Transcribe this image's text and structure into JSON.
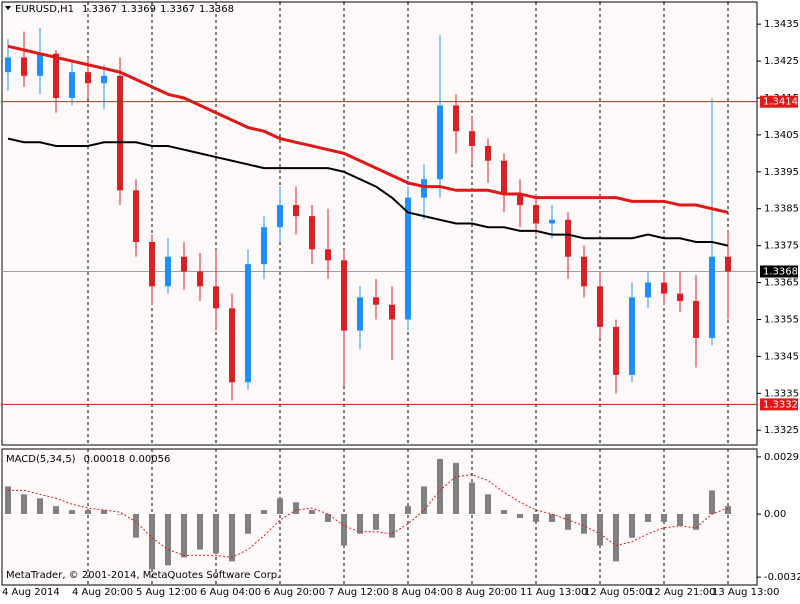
{
  "chart_data": [
    {
      "type": "candlestick",
      "title": "EURUSD,H1",
      "title_values": [
        1.3367,
        1.3369,
        1.3367,
        1.3368
      ],
      "categories": [
        "4 Aug 2014",
        null,
        null,
        null,
        null,
        "4 Aug 20:00",
        null,
        null,
        null,
        "5 Aug 12:00",
        null,
        null,
        null,
        "6 Aug 04:00",
        null,
        null,
        null,
        "6 Aug 20:00",
        null,
        null,
        null,
        "7 Aug 12:00",
        null,
        null,
        null,
        "8 Aug 04:00",
        null,
        null,
        null,
        "8 Aug 20:00",
        null,
        null,
        null,
        "11 Aug 13:00",
        null,
        null,
        null,
        "12 Aug 05:00",
        null,
        null,
        null,
        "12 Aug 21:00",
        null,
        null,
        null,
        "13 Aug 13:00"
      ],
      "open": [
        1.3422,
        1.3426,
        1.3421,
        1.3427,
        1.3415,
        1.3422,
        1.3419,
        1.3421,
        1.339,
        1.3376,
        1.3364,
        1.3372,
        1.3368,
        1.3364,
        1.3358,
        1.3338,
        1.337,
        1.338,
        1.3386,
        1.3383,
        1.3374,
        1.3371,
        1.3352,
        1.3361,
        1.3359,
        1.3355,
        1.3388,
        1.3393,
        1.3413,
        1.3406,
        1.3402,
        1.3398,
        1.3389,
        1.3386,
        1.3381,
        1.3382,
        1.3372,
        1.3364,
        1.3353,
        1.334,
        1.3361,
        1.3365,
        1.3362,
        1.336,
        1.335,
        1.3372
      ],
      "high": [
        1.3431,
        1.3433,
        1.3434,
        1.3428,
        1.3425,
        1.3426,
        1.3424,
        1.3426,
        1.3393,
        1.3378,
        1.3377,
        1.3376,
        1.3373,
        1.3374,
        1.3362,
        1.3374,
        1.3383,
        1.3391,
        1.3391,
        1.3386,
        1.3385,
        1.3374,
        1.3364,
        1.3366,
        1.3364,
        1.3391,
        1.3397,
        1.3432,
        1.3416,
        1.341,
        1.3404,
        1.34,
        1.3393,
        1.3389,
        1.3386,
        1.3384,
        1.3375,
        1.3368,
        1.3355,
        1.3365,
        1.3368,
        1.3368,
        1.3368,
        1.3367,
        1.3415,
        1.3379
      ],
      "low": [
        1.3417,
        1.3418,
        1.3416,
        1.3411,
        1.3413,
        1.3415,
        1.3412,
        1.3386,
        1.3372,
        1.3359,
        1.3362,
        1.3363,
        1.336,
        1.3352,
        1.3333,
        1.3336,
        1.3366,
        1.3376,
        1.3378,
        1.337,
        1.3366,
        1.3337,
        1.3347,
        1.3355,
        1.3344,
        1.3352,
        1.3382,
        1.3388,
        1.34,
        1.3397,
        1.3392,
        1.3384,
        1.338,
        1.3378,
        1.3377,
        1.3366,
        1.3361,
        1.335,
        1.3335,
        1.3338,
        1.3358,
        1.3359,
        1.3357,
        1.3342,
        1.3348,
        1.3355
      ],
      "close": [
        1.3426,
        1.3421,
        1.3427,
        1.3415,
        1.3422,
        1.3419,
        1.3421,
        1.339,
        1.3376,
        1.3364,
        1.3372,
        1.3368,
        1.3364,
        1.3358,
        1.3338,
        1.337,
        1.338,
        1.3386,
        1.3383,
        1.3374,
        1.3371,
        1.3352,
        1.3361,
        1.3359,
        1.3355,
        1.3388,
        1.3393,
        1.3413,
        1.3406,
        1.3402,
        1.3398,
        1.3389,
        1.3386,
        1.3381,
        1.3382,
        1.3372,
        1.3364,
        1.3353,
        1.334,
        1.3361,
        1.3365,
        1.3362,
        1.336,
        1.335,
        1.3372,
        1.3368
      ],
      "up_color": "#1e90ff",
      "down_color": "#dc1e28",
      "overlays": [
        {
          "color": "#e01818",
          "values": [
            1.3429,
            1.3428,
            1.3427,
            1.3426,
            1.3425,
            1.3424,
            1.3423,
            1.3422,
            1.342,
            1.3418,
            1.3416,
            1.3415,
            1.3413,
            1.3411,
            1.3409,
            1.3407,
            1.3406,
            1.3404,
            1.3403,
            1.3402,
            1.3401,
            1.34,
            1.3398,
            1.3396,
            1.3394,
            1.3392,
            1.3391,
            1.3391,
            1.339,
            1.339,
            1.339,
            1.3389,
            1.3389,
            1.3388,
            1.3388,
            1.3388,
            1.3388,
            1.3388,
            1.3388,
            1.3387,
            1.3387,
            1.3387,
            1.3386,
            1.3386,
            1.3385,
            1.3384
          ]
        },
        {
          "color": "#000000",
          "values": [
            1.3404,
            1.3403,
            1.3403,
            1.3402,
            1.3402,
            1.3402,
            1.3403,
            1.3403,
            1.3403,
            1.3402,
            1.3402,
            1.3401,
            1.34,
            1.3399,
            1.3398,
            1.3397,
            1.3396,
            1.3396,
            1.3396,
            1.3396,
            1.3396,
            1.3395,
            1.3393,
            1.3391,
            1.3388,
            1.3384,
            1.3383,
            1.3382,
            1.3381,
            1.3381,
            1.338,
            1.338,
            1.3379,
            1.3379,
            1.3378,
            1.3378,
            1.3377,
            1.3377,
            1.3377,
            1.3377,
            1.3378,
            1.3377,
            1.3377,
            1.3376,
            1.3376,
            1.3375
          ]
        }
      ],
      "levels": [
        {
          "value": 1.3414,
          "color": "#e01818"
        },
        {
          "value": 1.3332,
          "color": "#e01818"
        }
      ],
      "current_price": 1.3368,
      "ylim": [
        1.3321,
        1.3441
      ],
      "yticks": [
        1.3435,
        1.3425,
        1.3415,
        1.3405,
        1.3395,
        1.3385,
        1.3375,
        1.3365,
        1.3355,
        1.3345,
        1.3335,
        1.3325
      ]
    },
    {
      "type": "macd",
      "title": "MACD(5,34,5)",
      "title_values": [
        0.00018,
        0.00056
      ],
      "values": [
        0.0014,
        0.001,
        0.0008,
        0.0004,
        0.0002,
        0.0002,
        0.0002,
        0.0,
        -0.0012,
        -0.0028,
        -0.0026,
        -0.0022,
        -0.0018,
        -0.002,
        -0.0024,
        -0.001,
        0.0002,
        0.0008,
        0.0006,
        0.0002,
        -0.0004,
        -0.0016,
        -0.001,
        -0.0008,
        -0.0012,
        0.0004,
        0.0014,
        0.0028,
        0.0026,
        0.0016,
        0.001,
        0.0002,
        -0.0002,
        -0.0004,
        -0.0004,
        -0.0008,
        -0.001,
        -0.0016,
        -0.0024,
        -0.0012,
        -0.0004,
        -0.0004,
        -0.0006,
        -0.0008,
        0.0012,
        0.0004
      ],
      "signal": [
        0.0012,
        0.0012,
        0.001,
        0.0008,
        0.0005,
        0.0003,
        0.0002,
        0.0001,
        -0.0004,
        -0.0012,
        -0.0018,
        -0.0021,
        -0.0021,
        -0.0021,
        -0.0022,
        -0.0018,
        -0.0011,
        -0.0003,
        0.0002,
        0.0003,
        0.0,
        -0.0006,
        -0.0009,
        -0.0009,
        -0.001,
        -0.0005,
        0.0002,
        0.0012,
        0.0019,
        0.002,
        0.0017,
        0.0011,
        0.0006,
        0.0002,
        0.0,
        -0.0003,
        -0.0006,
        -0.001,
        -0.0016,
        -0.0014,
        -0.001,
        -0.0007,
        -0.0006,
        -0.0007,
        0.0,
        0.0003
      ],
      "color": "#808080",
      "signal_color": "#e01818",
      "ylim": [
        -0.0036,
        0.0033
      ],
      "yticks": [
        0.0029,
        {
          "value": 0,
          "label": "0.00"
        },
        -0.0032
      ]
    }
  ],
  "footer": "MetaTrader, © 2001-2014, MetaQuotes Software Corp."
}
